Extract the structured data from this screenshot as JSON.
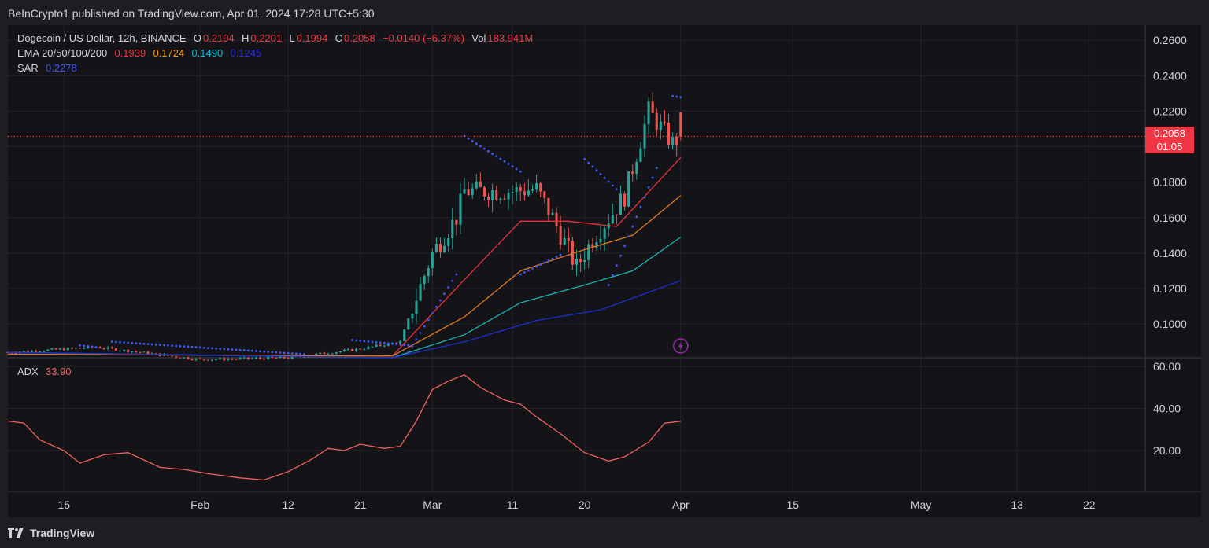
{
  "header": {
    "publisher_line": "BeInCrypto1 published on TradingView.com, Apr 01, 2024 17:28 UTC+5:30"
  },
  "legend": {
    "symbol": "Dogecoin / US Dollar, 12h, BINANCE",
    "o_label": "O",
    "o_value": "0.2194",
    "h_label": "H",
    "h_value": "0.2201",
    "l_label": "L",
    "l_value": "0.1994",
    "c_label": "C",
    "c_value": "0.2058",
    "change": "−0.0140 (−6.37%)",
    "vol_label": "Vol",
    "vol_value": "183.941M",
    "ema_label": "EMA 20/50/100/200",
    "ema20": "0.1939",
    "ema50": "0.1724",
    "ema100": "0.1490",
    "ema200": "0.1245",
    "sar_label": "SAR",
    "sar_value": "0.2278",
    "adx_label": "ADX",
    "adx_value": "33.90"
  },
  "price_badge": {
    "price": "0.2058",
    "countdown": "01:05"
  },
  "footer": {
    "brand": "TradingView"
  },
  "colors": {
    "up": "#26a69a",
    "down": "#ef5350",
    "ema20": "#e8313c",
    "ema50": "#e07a1f",
    "ema100": "#18b6b0",
    "ema200": "#1c2fd6",
    "sar": "#3d5afe",
    "adx": "#f0625f",
    "legend_red": "#f23645",
    "legend_orange": "#ff9800",
    "legend_cyan": "#00bcd4",
    "legend_blue": "#2a2ee0",
    "bolt": "#9c27b0"
  },
  "chart_data": [
    {
      "type": "candlestick",
      "title": "Dogecoin / US Dollar, 12h, BINANCE",
      "y_axis_ticks": [
        "0.2600",
        "0.2400",
        "0.2200",
        "0.2000",
        "0.1800",
        "0.1600",
        "0.1400",
        "0.1200",
        "0.1000"
      ],
      "ylim": [
        0.081,
        0.2685
      ],
      "x_axis_ticks": [
        "15",
        "Feb",
        "12",
        "21",
        "Mar",
        "11",
        "20",
        "Apr",
        "15",
        "May",
        "13",
        "22"
      ],
      "x_axis_dates": [
        "2024-01-15",
        "2024-02-01",
        "2024-02-12",
        "2024-02-21",
        "2024-03-01",
        "2024-03-11",
        "2024-03-20",
        "2024-04-01",
        "2024-04-15",
        "2024-05-01",
        "2024-05-13",
        "2024-05-22"
      ],
      "x_range": [
        "2024-01-08",
        "2024-05-29"
      ],
      "last_price": 0.2058,
      "key_closes": [
        {
          "date": "2024-01-08",
          "close": 0.084
        },
        {
          "date": "2024-01-19",
          "close": 0.087
        },
        {
          "date": "2024-02-01",
          "close": 0.08
        },
        {
          "date": "2024-02-12",
          "close": 0.081
        },
        {
          "date": "2024-02-21",
          "close": 0.086
        },
        {
          "date": "2024-02-26",
          "close": 0.09
        },
        {
          "date": "2024-03-01",
          "close": 0.14
        },
        {
          "date": "2024-03-04",
          "close": 0.16
        },
        {
          "date": "2024-03-05",
          "close": 0.175
        },
        {
          "date": "2024-03-11",
          "close": 0.175
        },
        {
          "date": "2024-03-14",
          "close": 0.176
        },
        {
          "date": "2024-03-16",
          "close": 0.16
        },
        {
          "date": "2024-03-19",
          "close": 0.132
        },
        {
          "date": "2024-03-21",
          "close": 0.148
        },
        {
          "date": "2024-03-25",
          "close": 0.172
        },
        {
          "date": "2024-03-28",
          "close": 0.22
        },
        {
          "date": "2024-03-31",
          "close": 0.202
        },
        {
          "date": "2024-04-01",
          "close": 0.2058
        }
      ],
      "ema": [
        {
          "name": "EMA 20",
          "points": [
            [
              "2024-01-08",
              0.083
            ],
            [
              "2024-02-25",
              0.082
            ],
            [
              "2024-03-05",
              0.125
            ],
            [
              "2024-03-12",
              0.158
            ],
            [
              "2024-03-18",
              0.158
            ],
            [
              "2024-03-24",
              0.155
            ],
            [
              "2024-04-01",
              0.1939
            ]
          ]
        },
        {
          "name": "EMA 50",
          "points": [
            [
              "2024-01-08",
              0.083
            ],
            [
              "2024-02-25",
              0.082
            ],
            [
              "2024-03-05",
              0.104
            ],
            [
              "2024-03-12",
              0.13
            ],
            [
              "2024-03-20",
              0.142
            ],
            [
              "2024-03-26",
              0.15
            ],
            [
              "2024-04-01",
              0.1724
            ]
          ]
        },
        {
          "name": "EMA 100",
          "points": [
            [
              "2024-01-08",
              0.084
            ],
            [
              "2024-02-25",
              0.081
            ],
            [
              "2024-03-05",
              0.094
            ],
            [
              "2024-03-12",
              0.112
            ],
            [
              "2024-03-20",
              0.122
            ],
            [
              "2024-03-26",
              0.13
            ],
            [
              "2024-04-01",
              0.149
            ]
          ]
        },
        {
          "name": "EMA 200",
          "points": [
            [
              "2024-01-08",
              0.084
            ],
            [
              "2024-02-25",
              0.081
            ],
            [
              "2024-03-05",
              0.09
            ],
            [
              "2024-03-14",
              0.102
            ],
            [
              "2024-03-22",
              0.108
            ],
            [
              "2024-04-01",
              0.1245
            ]
          ]
        }
      ],
      "sar": [
        {
          "start": "2024-01-17",
          "end": "2024-01-19",
          "from": 0.088,
          "to": 0.087
        },
        {
          "start": "2024-01-21",
          "end": "2024-02-14",
          "from": 0.09,
          "to": 0.083
        },
        {
          "start": "2024-02-20",
          "end": "2024-02-27",
          "from": 0.091,
          "to": 0.088
        },
        {
          "start": "2024-02-27",
          "end": "2024-03-04",
          "from": 0.084,
          "to": 0.128
        },
        {
          "start": "2024-03-05",
          "end": "2024-03-12",
          "from": 0.206,
          "to": 0.186
        },
        {
          "start": "2024-03-12",
          "end": "2024-03-17",
          "from": 0.128,
          "to": 0.139
        },
        {
          "start": "2024-03-20",
          "end": "2024-03-24",
          "from": 0.193,
          "to": 0.176
        },
        {
          "start": "2024-03-23",
          "end": "2024-03-29",
          "from": 0.122,
          "to": 0.188
        },
        {
          "start": "2024-03-31",
          "end": "2024-04-01",
          "from": 0.2285,
          "to": 0.2278
        }
      ]
    },
    {
      "type": "line",
      "title": "ADX",
      "y_axis_ticks": [
        "60.00",
        "40.00",
        "20.00"
      ],
      "ylim": [
        0,
        60
      ],
      "points": [
        [
          "2024-01-08",
          34
        ],
        [
          "2024-01-10",
          33
        ],
        [
          "2024-01-12",
          25
        ],
        [
          "2024-01-15",
          20
        ],
        [
          "2024-01-17",
          14
        ],
        [
          "2024-01-20",
          18
        ],
        [
          "2024-01-23",
          19
        ],
        [
          "2024-01-27",
          12
        ],
        [
          "2024-01-30",
          11
        ],
        [
          "2024-02-02",
          9
        ],
        [
          "2024-02-06",
          7
        ],
        [
          "2024-02-09",
          6
        ],
        [
          "2024-02-12",
          10
        ],
        [
          "2024-02-15",
          16
        ],
        [
          "2024-02-17",
          21
        ],
        [
          "2024-02-19",
          20
        ],
        [
          "2024-02-21",
          23
        ],
        [
          "2024-02-24",
          21
        ],
        [
          "2024-02-26",
          22
        ],
        [
          "2024-02-28",
          34
        ],
        [
          "2024-03-01",
          49
        ],
        [
          "2024-03-03",
          53
        ],
        [
          "2024-03-05",
          56
        ],
        [
          "2024-03-07",
          50
        ],
        [
          "2024-03-10",
          44
        ],
        [
          "2024-03-12",
          42
        ],
        [
          "2024-03-14",
          36
        ],
        [
          "2024-03-17",
          28
        ],
        [
          "2024-03-20",
          19
        ],
        [
          "2024-03-23",
          15
        ],
        [
          "2024-03-25",
          17
        ],
        [
          "2024-03-28",
          24
        ],
        [
          "2024-03-30",
          33
        ],
        [
          "2024-04-01",
          33.9
        ]
      ]
    }
  ]
}
